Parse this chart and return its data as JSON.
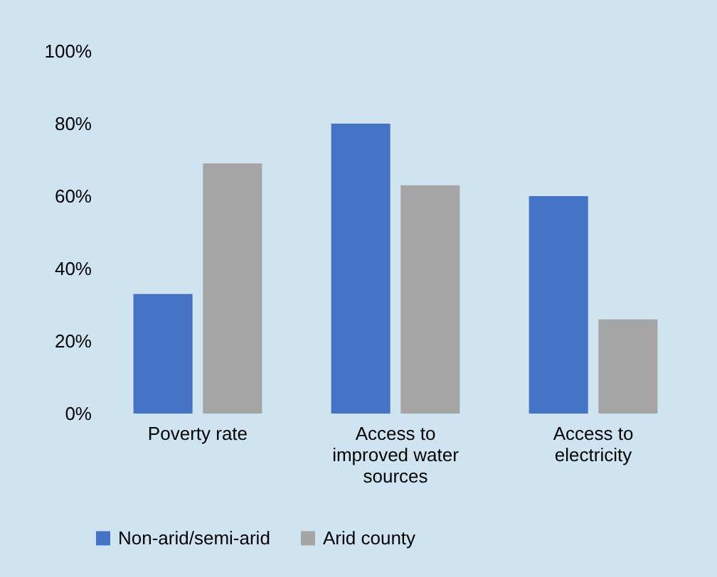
{
  "chart_data": {
    "type": "bar",
    "categories": [
      "Poverty rate",
      "Access to improved water sources",
      "Access to electricity"
    ],
    "series": [
      {
        "name": "Non-arid/semi-arid",
        "color": "#4472c4",
        "values": [
          33,
          80,
          60
        ]
      },
      {
        "name": "Arid county",
        "color": "#a5a5a5",
        "values": [
          69,
          63,
          26
        ]
      }
    ],
    "ylim": [
      0,
      100
    ],
    "yticks": [
      {
        "value": 0,
        "label": "0%"
      },
      {
        "value": 20,
        "label": "20%"
      },
      {
        "value": 40,
        "label": "40%"
      },
      {
        "value": 60,
        "label": "60%"
      },
      {
        "value": 80,
        "label": "80%"
      },
      {
        "value": 100,
        "label": "100%"
      }
    ],
    "grid": false,
    "legend": "bottom"
  }
}
